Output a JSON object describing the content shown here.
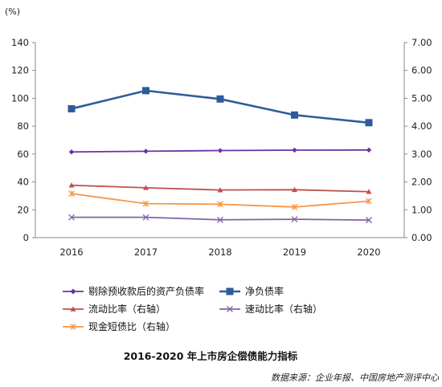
{
  "chart_data": {
    "type": "line",
    "title": "2016-2020 年上市房企偿债能力指标",
    "unit_label": "(%)",
    "source": "数据来源：企业年报、中国房地产测评中心",
    "categories": [
      "2016",
      "2017",
      "2018",
      "2019",
      "2020"
    ],
    "left_axis": {
      "ylim": [
        0,
        140
      ],
      "ticks": [
        "0",
        "20",
        "40",
        "60",
        "80",
        "100",
        "120",
        "140"
      ]
    },
    "right_axis": {
      "ylim": [
        0,
        7
      ],
      "ticks": [
        "0.00",
        "1.00",
        "2.00",
        "3.00",
        "4.00",
        "5.00",
        "6.00",
        "7.00"
      ]
    },
    "grid": false,
    "legend_position": "bottom",
    "series": [
      {
        "name": "剔除预收款后的资产负债率",
        "axis": "left",
        "values": [
          61.5,
          62.0,
          62.5,
          62.8,
          62.9
        ],
        "color": "#7030a0",
        "marker": "diamond"
      },
      {
        "name": "净负债率",
        "axis": "left",
        "values": [
          92.5,
          105.5,
          99.5,
          88.0,
          82.5
        ],
        "color": "#2e5c9a",
        "marker": "square"
      },
      {
        "name": "流动比率（右轴）",
        "axis": "right",
        "values": [
          1.88,
          1.79,
          1.71,
          1.72,
          1.65
        ],
        "color": "#c0504d",
        "marker": "triangle"
      },
      {
        "name": "速动比率（右轴）",
        "axis": "right",
        "values": [
          0.73,
          0.73,
          0.64,
          0.66,
          0.63
        ],
        "color": "#8064a2",
        "marker": "x"
      },
      {
        "name": "现金短债比（右轴）",
        "axis": "right",
        "values": [
          1.58,
          1.22,
          1.2,
          1.1,
          1.31
        ],
        "color": "#f79646",
        "marker": "star"
      }
    ]
  }
}
